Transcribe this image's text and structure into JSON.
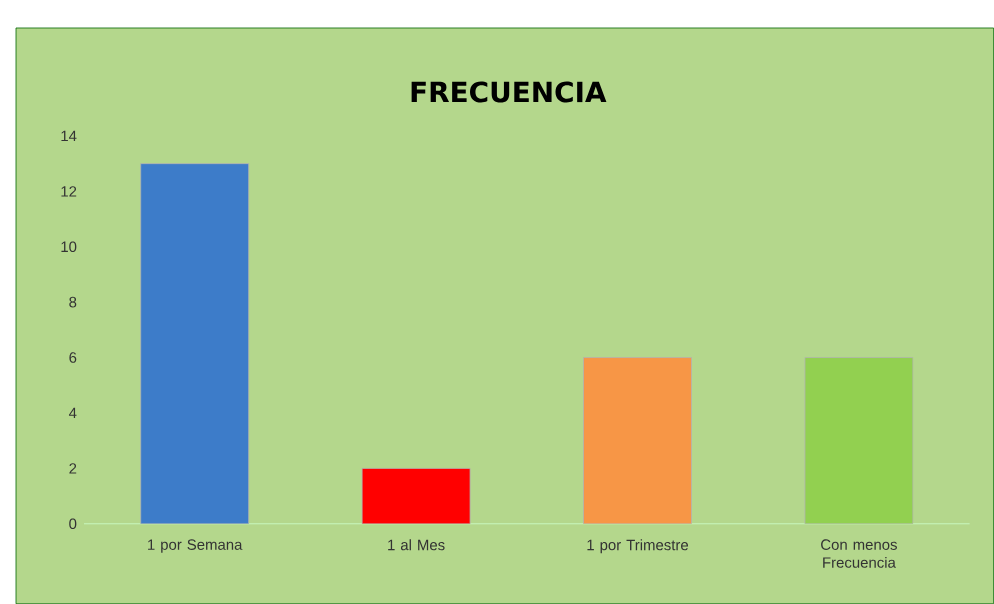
{
  "chart_data": {
    "type": "bar",
    "title": "FRECUENCIA",
    "categories": [
      "1 por Semana",
      "1 al Mes",
      "1 por Trimestre",
      "Con menos Frecuencia"
    ],
    "values": [
      13,
      2,
      6,
      6
    ],
    "colors": [
      "#3d7cc9",
      "#ff0000",
      "#f79646",
      "#92d050"
    ],
    "ylim": [
      0,
      14
    ],
    "yticks": [
      0,
      2,
      4,
      6,
      8,
      10,
      12,
      14
    ],
    "grid": false
  }
}
